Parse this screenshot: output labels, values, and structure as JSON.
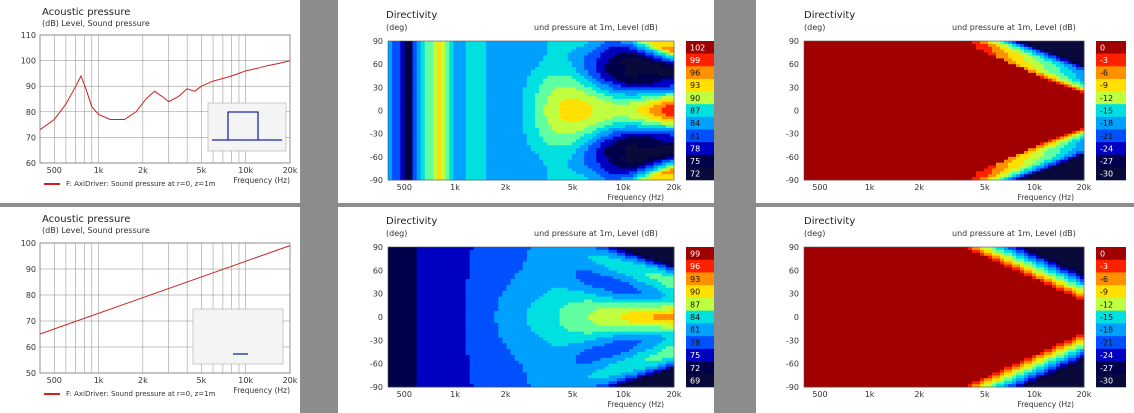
{
  "colors": {
    "levels": [
      "#0a0a3a",
      "#00004a",
      "#0000c0",
      "#0050ff",
      "#00a0ff",
      "#00e0e0",
      "#60ffa0",
      "#c0ff40",
      "#ffe000",
      "#ff9000",
      "#ff2000",
      "#a00000"
    ],
    "curve": "#cc2222"
  },
  "panels": {
    "ap1": {
      "title": "Acoustic pressure",
      "units": "(dB)  Level, Sound pressure",
      "legend": "F: AxiDriver: Sound pressure at r=0, z=1m",
      "xlabel": "Frequency  (Hz)"
    },
    "ap2": {
      "title": "Acoustic pressure",
      "units": "(dB)  Level, Sound pressure",
      "legend": "F: AxiDriver: Sound pressure at r=0, z=1m",
      "xlabel": "Frequency  (Hz)"
    },
    "d1": {
      "title": "Directivity",
      "units": "(deg)",
      "right": "und pressure at 1m, Level  (dB)",
      "xlabel": "Frequency  (Hz)"
    },
    "d2": {
      "title": "Directivity",
      "units": "(deg)",
      "right": "und pressure at 1m, Level  (dB)",
      "xlabel": "Frequency  (Hz)"
    },
    "d3": {
      "title": "Directivity",
      "units": "(deg)",
      "right": "und pressure at 1m, Level  (dB)",
      "xlabel": "Frequency  (Hz)"
    },
    "d4": {
      "title": "Directivity",
      "units": "(deg)",
      "right": "und pressure at 1m, Level  (dB)",
      "xlabel": "Frequency  (Hz)"
    }
  },
  "chart_data": [
    {
      "id": "ap1",
      "type": "line",
      "title": "Acoustic pressure",
      "ylabel": "(dB)  Level, Sound pressure",
      "xlabel": "Frequency  (Hz)",
      "xscale": "log",
      "xlim": [
        400,
        20000
      ],
      "ylim": [
        60,
        110
      ],
      "xticks": [
        "500",
        "1k",
        "2k",
        "5k",
        "10k",
        "20k"
      ],
      "xtick_values": [
        500,
        1000,
        2000,
        5000,
        10000,
        20000
      ],
      "yticks": [
        60,
        70,
        80,
        90,
        100,
        110
      ],
      "series": [
        {
          "name": "F: AxiDriver: Sound pressure at r=0, z=1m",
          "x": [
            400,
            500,
            600,
            700,
            760,
            820,
            900,
            1000,
            1200,
            1500,
            1800,
            2100,
            2400,
            2700,
            3000,
            3500,
            4000,
            4500,
            5000,
            6000,
            7000,
            8000,
            9000,
            10000,
            12000,
            14000,
            17000,
            20000
          ],
          "y": [
            73,
            77,
            83,
            90,
            94,
            89,
            82,
            79,
            77,
            77,
            80,
            85,
            88,
            86,
            84,
            86,
            89,
            88,
            90,
            92,
            93,
            94,
            95,
            96,
            97,
            98,
            99,
            100
          ]
        }
      ]
    },
    {
      "id": "d1",
      "type": "heatmap",
      "title": "Directivity",
      "ylabel": "(deg)",
      "xlabel": "Frequency  (Hz)",
      "colorbar_label": "und pressure at 1m, Level  (dB)",
      "xscale": "log",
      "xlim": [
        400,
        20000
      ],
      "ylim": [
        -90,
        90
      ],
      "xticks": [
        "500",
        "1k",
        "2k",
        "5k",
        "10k",
        "20k"
      ],
      "yticks": [
        90,
        60,
        30,
        0,
        -30,
        -60,
        -90
      ],
      "colorbar": [
        "102",
        "99",
        "96",
        "93",
        "90",
        "87",
        "84",
        "81",
        "78",
        "75",
        "72"
      ]
    },
    {
      "id": "d2",
      "type": "heatmap",
      "title": "Directivity",
      "ylabel": "(deg)",
      "xlabel": "Frequency  (Hz)",
      "colorbar_label": "und pressure at 1m, Level  (dB)",
      "xscale": "log",
      "xlim": [
        400,
        20000
      ],
      "ylim": [
        -90,
        90
      ],
      "xticks": [
        "500",
        "1k",
        "2k",
        "5k",
        "10k",
        "20k"
      ],
      "yticks": [
        90,
        60,
        30,
        0,
        -30,
        -60,
        -90
      ],
      "colorbar": [
        "0",
        "-3",
        "-6",
        "-9",
        "-12",
        "-15",
        "-18",
        "-21",
        "-24",
        "-27",
        "-30"
      ]
    },
    {
      "id": "ap2",
      "type": "line",
      "title": "Acoustic pressure",
      "ylabel": "(dB)  Level, Sound pressure",
      "xlabel": "Frequency  (Hz)",
      "xscale": "log",
      "xlim": [
        400,
        20000
      ],
      "ylim": [
        50,
        100
      ],
      "xticks": [
        "500",
        "1k",
        "2k",
        "5k",
        "10k",
        "20k"
      ],
      "xtick_values": [
        500,
        1000,
        2000,
        5000,
        10000,
        20000
      ],
      "yticks": [
        50,
        60,
        70,
        80,
        90,
        100
      ],
      "series": [
        {
          "name": "F: AxiDriver: Sound pressure at r=0, z=1m",
          "x": [
            400,
            20000
          ],
          "y": [
            65,
            99
          ]
        }
      ]
    },
    {
      "id": "d3",
      "type": "heatmap",
      "title": "Directivity",
      "ylabel": "(deg)",
      "xlabel": "Frequency  (Hz)",
      "colorbar_label": "und pressure at 1m, Level  (dB)",
      "xscale": "log",
      "xlim": [
        400,
        20000
      ],
      "ylim": [
        -90,
        90
      ],
      "xticks": [
        "500",
        "1k",
        "2k",
        "5k",
        "10k",
        "20k"
      ],
      "yticks": [
        90,
        60,
        30,
        0,
        -30,
        -60,
        -90
      ],
      "colorbar": [
        "99",
        "96",
        "93",
        "90",
        "87",
        "84",
        "81",
        "78",
        "75",
        "72",
        "69"
      ]
    },
    {
      "id": "d4",
      "type": "heatmap",
      "title": "Directivity",
      "ylabel": "(deg)",
      "xlabel": "Frequency  (Hz)",
      "colorbar_label": "und pressure at 1m, Level  (dB)",
      "xscale": "log",
      "xlim": [
        400,
        20000
      ],
      "ylim": [
        -90,
        90
      ],
      "xticks": [
        "500",
        "1k",
        "2k",
        "5k",
        "10k",
        "20k"
      ],
      "yticks": [
        90,
        60,
        30,
        0,
        -30,
        -60,
        -90
      ],
      "colorbar": [
        "0",
        "-3",
        "-6",
        "-9",
        "-12",
        "-15",
        "-18",
        "-21",
        "-24",
        "-27",
        "-30"
      ]
    }
  ]
}
